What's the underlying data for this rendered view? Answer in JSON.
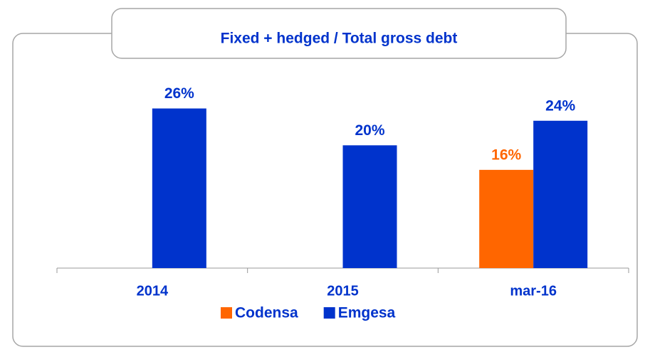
{
  "chart_data": {
    "type": "bar",
    "title": "Fixed + hedged / Total gross debt",
    "categories": [
      "2014",
      "2015",
      "mar-16"
    ],
    "series": [
      {
        "name": "Codensa",
        "color": "#ff6600",
        "values": [
          null,
          null,
          16
        ],
        "value_labels": [
          null,
          null,
          "16%"
        ]
      },
      {
        "name": "Emgesa",
        "color": "#0033cc",
        "values": [
          26,
          20,
          24
        ],
        "value_labels": [
          "26%",
          "20%",
          "24%"
        ]
      }
    ],
    "ylim": [
      0,
      30
    ]
  }
}
